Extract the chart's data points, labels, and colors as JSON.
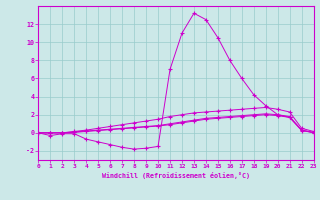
{
  "xlabel": "Windchill (Refroidissement éolien,°C)",
  "background_color": "#cce8e8",
  "grid_color": "#99cccc",
  "line_color": "#cc00cc",
  "x": [
    0,
    1,
    2,
    3,
    4,
    5,
    6,
    7,
    8,
    9,
    10,
    11,
    12,
    13,
    14,
    15,
    16,
    17,
    18,
    19,
    20,
    21,
    22,
    23
  ],
  "series1": [
    0,
    -0.3,
    -0.1,
    -0.1,
    -0.7,
    -1.0,
    -1.3,
    -1.6,
    -1.8,
    -1.7,
    -1.5,
    7.0,
    11.0,
    13.2,
    12.5,
    10.5,
    8.0,
    6.0,
    4.2,
    3.0,
    2.0,
    1.7,
    0.3,
    0.0
  ],
  "series2": [
    0,
    0.0,
    0.0,
    0.1,
    0.2,
    0.3,
    0.4,
    0.5,
    0.6,
    0.7,
    0.8,
    1.0,
    1.2,
    1.4,
    1.6,
    1.7,
    1.8,
    1.9,
    2.0,
    2.1,
    2.0,
    1.8,
    0.3,
    0.05
  ],
  "series3": [
    0,
    0.0,
    0.0,
    0.15,
    0.3,
    0.5,
    0.7,
    0.9,
    1.1,
    1.3,
    1.5,
    1.8,
    2.0,
    2.2,
    2.3,
    2.4,
    2.5,
    2.6,
    2.7,
    2.8,
    2.6,
    2.3,
    0.5,
    0.15
  ],
  "series4": [
    0,
    0.0,
    0.0,
    0.05,
    0.15,
    0.25,
    0.35,
    0.45,
    0.55,
    0.65,
    0.75,
    0.9,
    1.1,
    1.3,
    1.5,
    1.6,
    1.7,
    1.8,
    1.9,
    2.0,
    1.9,
    1.7,
    0.25,
    0.02
  ],
  "ylim": [
    -3,
    14
  ],
  "xlim": [
    0,
    23
  ],
  "yticks": [
    -2,
    0,
    2,
    4,
    6,
    8,
    10,
    12
  ],
  "xticks": [
    0,
    1,
    2,
    3,
    4,
    5,
    6,
    7,
    8,
    9,
    10,
    11,
    12,
    13,
    14,
    15,
    16,
    17,
    18,
    19,
    20,
    21,
    22,
    23
  ]
}
